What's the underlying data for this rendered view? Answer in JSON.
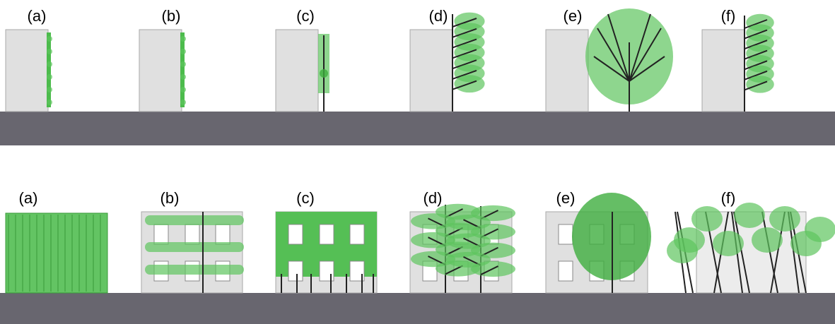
{
  "side_view": {
    "panels": [
      {
        "label": "(a)"
      },
      {
        "label": "(b)"
      },
      {
        "label": "(c)"
      },
      {
        "label": "(d)"
      },
      {
        "label": "(e)"
      },
      {
        "label": "(f)"
      }
    ]
  },
  "front_view": {
    "panels": [
      {
        "label": "(a)"
      },
      {
        "label": "(b)"
      },
      {
        "label": "(c)"
      },
      {
        "label": "(d)"
      },
      {
        "label": "(e)"
      },
      {
        "label": "(f)"
      }
    ]
  }
}
